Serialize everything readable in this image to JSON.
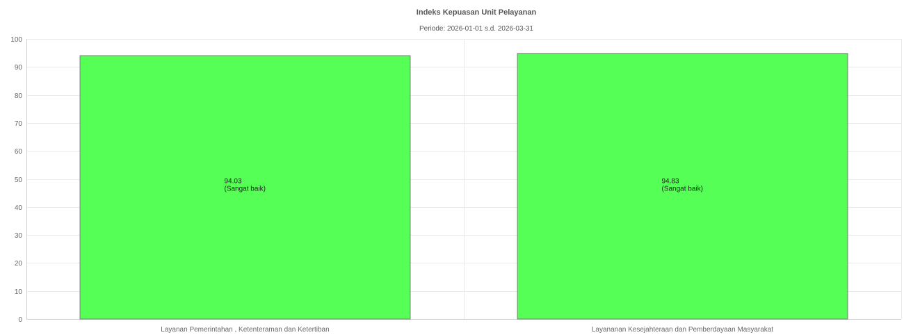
{
  "chart_data": {
    "type": "bar",
    "title": "Indeks Kepuasan Unit Pelayanan",
    "subtitle": "Periode: 2026-01-01 s.d. 2026-03-31",
    "categories": [
      "Layanan Pemerintahan , Ketenteraman dan Ketertiban",
      "Layananan Kesejahteraan dan Pemberdayaan Masyarakat"
    ],
    "values": [
      94.03,
      94.83
    ],
    "value_labels": [
      [
        "94.03",
        "(Sangat baik)"
      ],
      [
        "94.83",
        "(Sangat baik)"
      ]
    ],
    "ylim": [
      0,
      100
    ],
    "yticks": [
      0,
      10,
      20,
      30,
      40,
      50,
      60,
      70,
      80,
      90,
      100
    ],
    "xlabel": "",
    "ylabel": "",
    "grid": true,
    "legend": "none",
    "colors": {
      "bar_fill": "#55ff55",
      "bar_stroke": "#7a7a7a",
      "grid": "#e9e9e9",
      "text": "#666666"
    }
  }
}
